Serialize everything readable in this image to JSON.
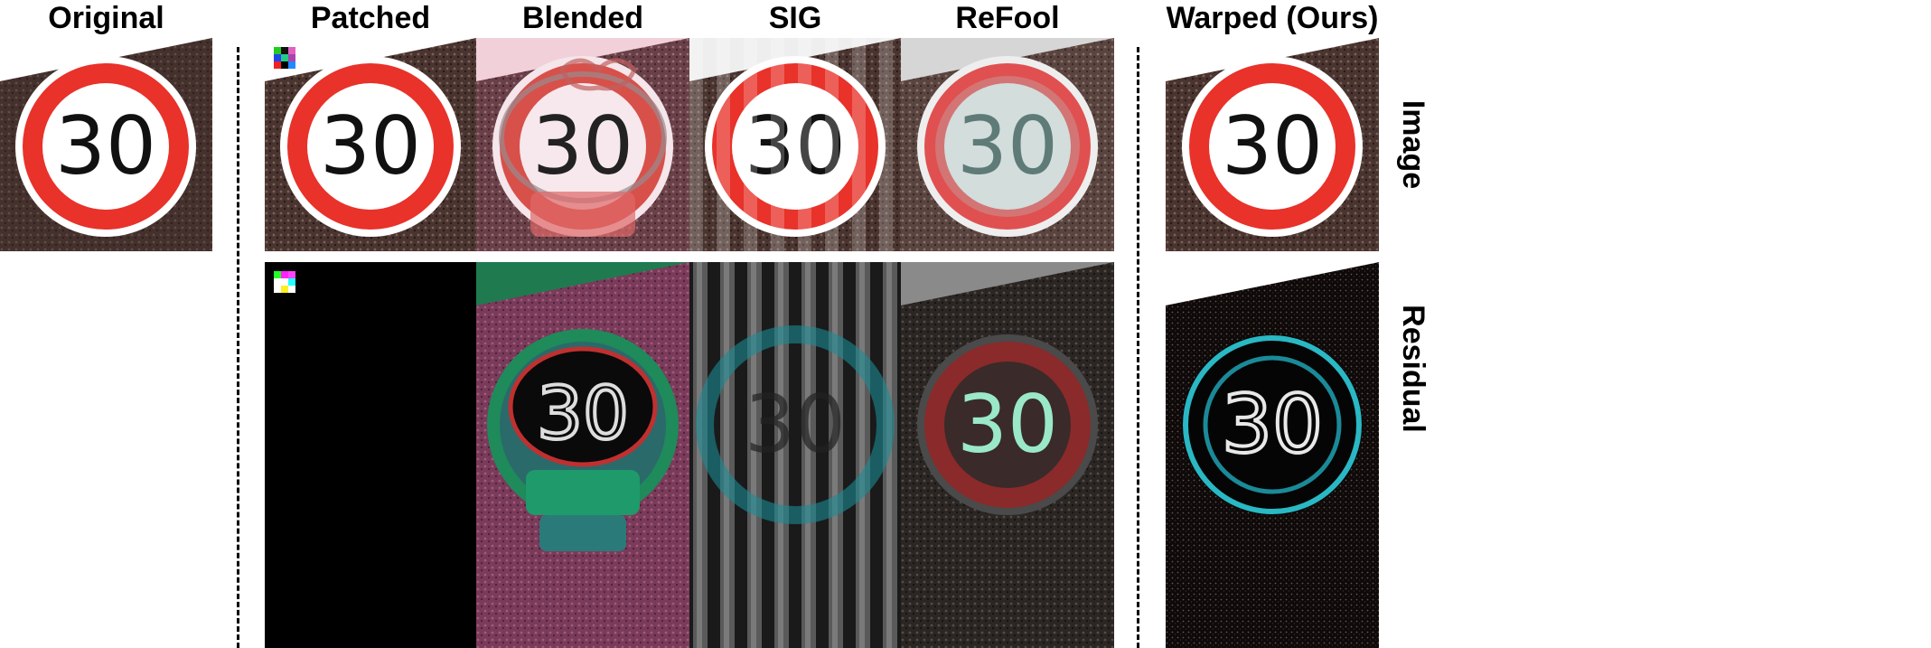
{
  "figure": {
    "columns": [
      {
        "id": "original",
        "label": "Original"
      },
      {
        "id": "patched",
        "label": "Patched"
      },
      {
        "id": "blended",
        "label": "Blended"
      },
      {
        "id": "sig",
        "label": "SIG"
      },
      {
        "id": "refool",
        "label": "ReFool"
      },
      {
        "id": "warped",
        "label": "Warped (Ours)"
      }
    ],
    "rows": [
      {
        "id": "image",
        "label": "Image"
      },
      {
        "id": "residual",
        "label": "Residual"
      }
    ],
    "sign_text": "30",
    "colors": {
      "sign_red": "#e8322a",
      "sign_white": "#ffffff",
      "digit_black": "#111111",
      "background_dark": "#3a2a28",
      "residual_cyan": "#29b8c4",
      "blend_pink": "#e8b8c8",
      "blend_green": "#1f8a5a"
    }
  }
}
